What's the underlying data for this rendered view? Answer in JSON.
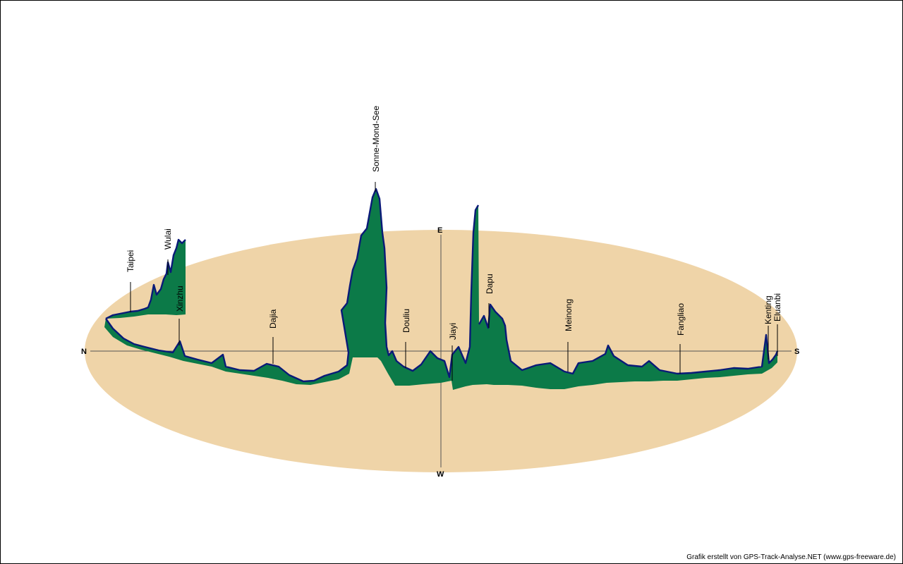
{
  "chart_data": {
    "type": "area",
    "description_style": "3d-elevation-profile",
    "compass": {
      "north": "N",
      "south": "S",
      "east": "E",
      "west": "W"
    },
    "places": [
      "Taipei",
      "Wulai",
      "Xinzhu",
      "Dajia",
      "Sonne-Mond-See",
      "Douliu",
      "Jiayi",
      "Dapu",
      "Meinong",
      "Fangliao",
      "Kenting",
      "Eluanbi"
    ],
    "colors": {
      "ground": "#efd4a8",
      "profile_line": "#0a1a78",
      "fill_top": "#e4f1ec",
      "fill_bottom": "#0c7a48",
      "axis": "#555555"
    }
  },
  "credit": "Grafik erstellt von GPS-Track-Analyse.NET (www.gps-freeware.de)"
}
